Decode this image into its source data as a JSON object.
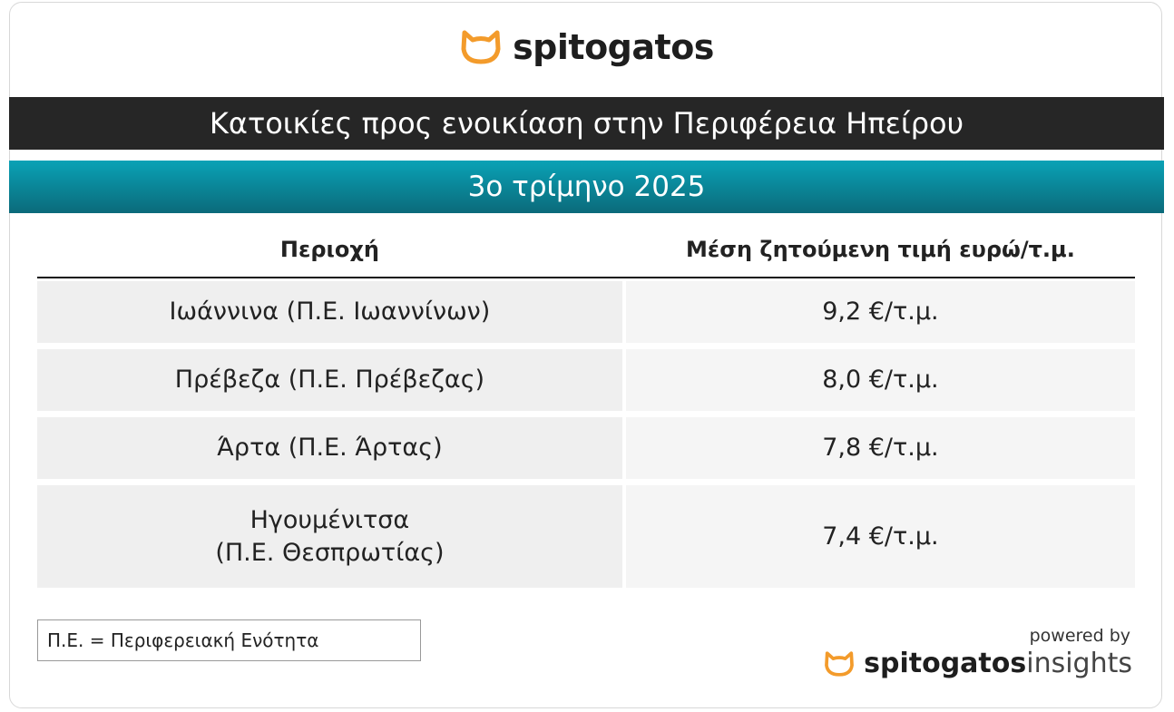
{
  "header": {
    "logo": "spitogatos",
    "title": "Κατοικίες προς ενοικίαση στην Περιφέρεια Ηπείρου",
    "subtitle": "3ο τρίμηνο 2025"
  },
  "table": {
    "columns": [
      "Περιοχή",
      "Μέση ζητούμενη τιμή ευρώ/τ.μ."
    ],
    "rows": [
      [
        "Ιωάννινα (Π.Ε. Ιωαννίνων)",
        "9,2 €/τ.μ."
      ],
      [
        "Πρέβεζα (Π.Ε. Πρέβεζας)",
        "8,0 €/τ.μ."
      ],
      [
        "Άρτα (Π.Ε. Άρτας)",
        "7,8 €/τ.μ."
      ],
      [
        "Ηγουμένιτσα\n(Π.Ε. Θεσπρωτίας)",
        "7,4 €/τ.μ."
      ]
    ]
  },
  "footer": {
    "note": "Π.Ε. = Περιφερειακή Ενότητα",
    "powered_by": "powered by",
    "brand": "spitogatos",
    "brand_suffix": "insights"
  }
}
